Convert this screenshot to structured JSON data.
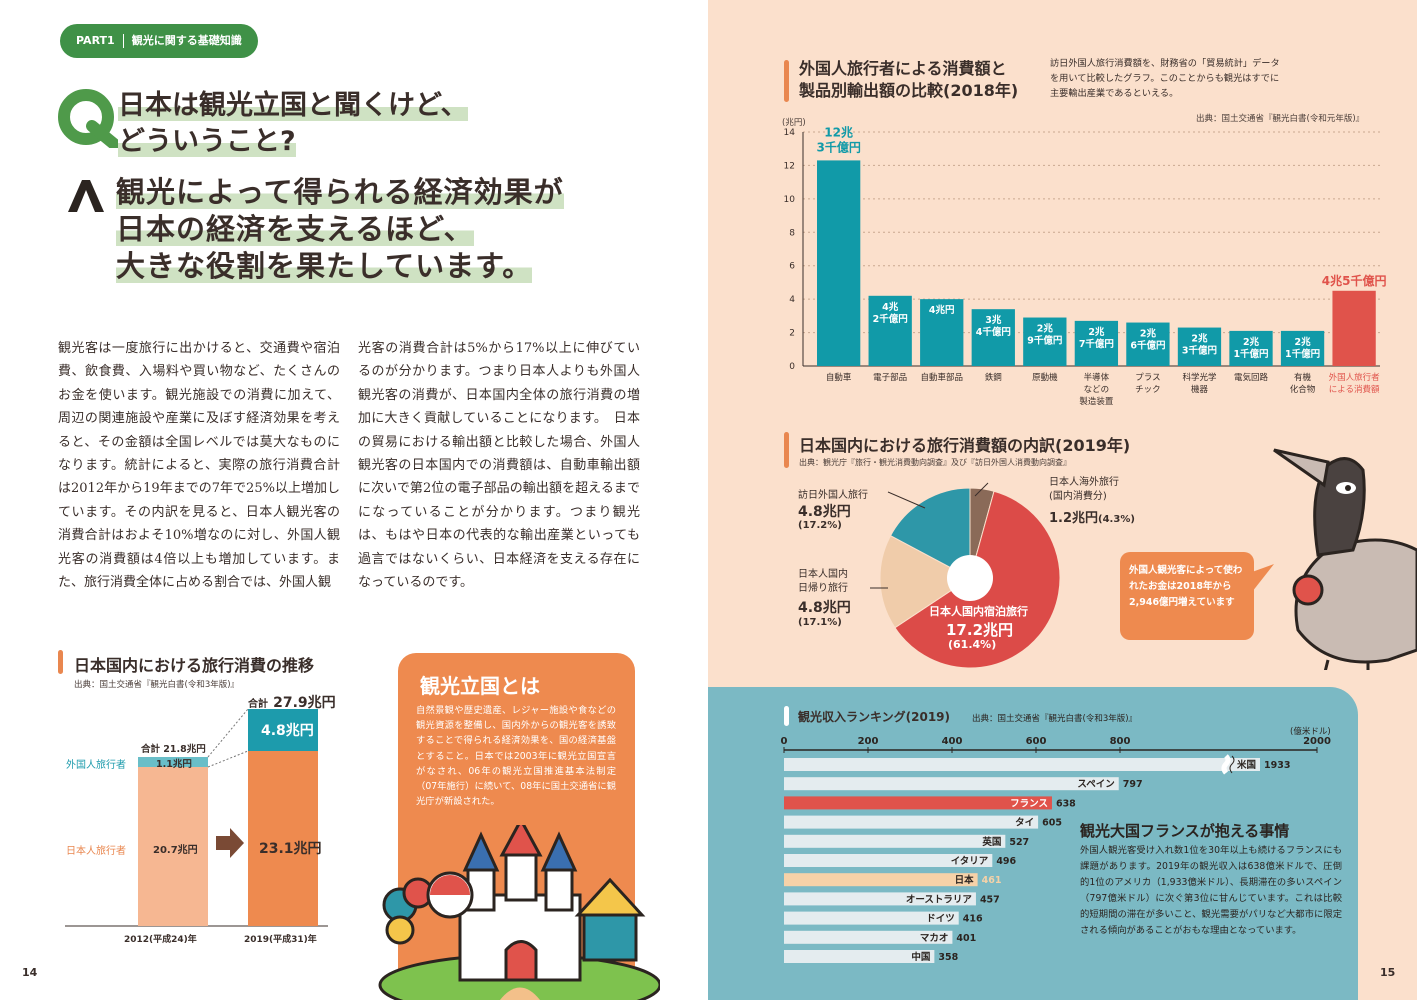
{
  "part": {
    "label": "PART1",
    "title": "観光に関する基礎知識"
  },
  "q": {
    "mark": "Q",
    "line1": "日本は観光立国と聞くけど、",
    "line2": "どういうこと?"
  },
  "a": {
    "mark": "A",
    "line1": "観光によって得られる経済効果が",
    "line2": "日本の経済を支えるほど、",
    "line3": "大きな役割を果たしています。"
  },
  "body": {
    "col1": "観光客は一度旅行に出かけると、交通費や宿泊費、飲食費、入場料や買い物など、たくさんのお金を使います。観光施設での消費に加えて、周辺の関連施設や産業に及ぼす経済効果を考えると、その金額は全国レベルでは莫大なものになります。統計によると、実際の旅行消費合計は2012年から19年までの7年で25%以上増加しています。その内訳を見ると、日本人観光客の消費合計はおよそ10%増なのに対し、外国人観光客の消費額は4倍以上も増加しています。また、旅行消費全体に占める割合では、外国人観",
    "col2": "光客の消費合計は5%から17%以上に伸びているのが分かります。つまり日本人よりも外国人観光客の消費が、日本国内全体の旅行消費の増加に大きく貢献していることになります。　日本の貿易における輸出額と比較した場合、外国人観光客の日本国内での消費額は、自動車輸出額に次いで第2位の電子部品の輸出額を超えるまでになっていることが分かります。つまり観光は、もはや日本の代表的な輸出産業といっても過言ではないくらい、日本経済を支える存在になっているのです。",
    "ruby1": "ばくだい",
    "ruby2": "こうけん"
  },
  "trend": {
    "title": "日本国内における旅行消費の推移",
    "source": "出典：国土交通省『観光白書(令和3年版)』",
    "label_foreign": "外国人旅行者",
    "label_japanese": "日本人旅行者",
    "total_2012": "合計 21.8兆円",
    "total_2019_prefix": "合計",
    "total_2019_value": "27.9兆円",
    "foreign_2012": "1.1兆円",
    "japanese_2012": "20.7兆円",
    "foreign_2019": "4.8兆円",
    "japanese_2019": "23.1兆円",
    "year_2012": "2012(平成24)年",
    "year_2019": "2019(平成31)年"
  },
  "kanko_box": {
    "title": "観光立国とは",
    "text": "自然景観や歴史遺産、レジャー施設や食などの観光資源を整備し、国内外からの観光客を誘致することで得られる経済効果を、国の経済基盤とすること。日本では2003年に観光立国宣言がなされ、06年の観光立国推進基本法制定（07年施行）に続いて、08年に国土交通省に観光庁が新設された。"
  },
  "page_numbers": {
    "left": "14",
    "right": "15"
  },
  "export": {
    "title1": "外国人旅行者による消費額と",
    "title2": "製品別輸出額の比較(2018年)",
    "note": "訪日外国人旅行消費額を、財務省の「貿易統計」データを用いて比較したグラフ。このことからも観光はすでに主要輸出産業であるといえる。",
    "source": "出典：国土交通省『観光白書(令和元年版)』",
    "unit": "(兆円)"
  },
  "breakdown": {
    "title": "日本国内における旅行消費額の内訳(2019年)",
    "source": "出典：観光庁『旅行・観光消費動向調査』及び『訪日外国人消費動向調査』",
    "inbound_label": "訪日外国人旅行",
    "inbound_value": "4.8兆円",
    "inbound_pct": "(17.2%)",
    "daytrip_label1": "日本人国内",
    "daytrip_label2": "日帰り旅行",
    "daytrip_value": "4.8兆円",
    "daytrip_pct": "(17.1%)",
    "overnight_label": "日本人国内宿泊旅行",
    "overnight_value": "17.2兆円",
    "overnight_pct": "(61.4%)",
    "outbound_label1": "日本人海外旅行",
    "outbound_label2": "(国内消費分)",
    "outbound_value": "1.2兆円",
    "outbound_pct": "(4.3%)"
  },
  "speech": {
    "text": "外国人観光客によって使われたお金は2018年から2,946億円増えています"
  },
  "ranking": {
    "title": "観光収入ランキング(2019)",
    "source": "出典：国土交通省『観光白書(令和3年版)』",
    "unit": "(億米ドル)"
  },
  "france": {
    "title": "観光大国フランスが抱える事情",
    "text": "外国人観光客受け入れ数1位を30年以上も続けるフランスにも課題があります。2019年の観光収入は638億米ドルで、圧倒的1位のアメリカ（1,933億米ドル）、長期滞在の多いスペイン（797億米ドル）に次ぐ第3位に甘んじています。これは比較的短期間の滞在が多いこと、観光需要がパリなど大都市に限定される傾向があることがおもな理由となっています。"
  },
  "colors": {
    "green": "#3f9147",
    "teal": "#119aa8",
    "red": "#e0534b",
    "orange": "#ee8a4f",
    "peach": "#fbe0cc",
    "blue_panel": "#7bb9c4"
  },
  "chart_data": [
    {
      "type": "bar",
      "title": "外国人旅行者による消費額と製品別輸出額の比較(2018年)",
      "ylabel": "(兆円)",
      "ylim": [
        0,
        14
      ],
      "yticks": [
        0,
        2,
        4,
        6,
        8,
        10,
        12,
        14
      ],
      "categories": [
        "自動車",
        "電子部品",
        "自動車部品",
        "鉄鋼",
        "原動機",
        "半導体などの製造装置",
        "プラスチック",
        "科学光学機器",
        "電気回路",
        "有機化合物",
        "外国人旅行者による消費額"
      ],
      "category_lines": [
        [
          "自動車"
        ],
        [
          "電子部品"
        ],
        [
          "自動車部品"
        ],
        [
          "鉄鋼"
        ],
        [
          "原動機"
        ],
        [
          "半導体",
          "などの",
          "製造装置"
        ],
        [
          "プラス",
          "チック"
        ],
        [
          "科学光学",
          "機器"
        ],
        [
          "電気回路"
        ],
        [
          "有機",
          "化合物"
        ],
        [
          "外国人旅行者",
          "による消費額"
        ]
      ],
      "values": [
        12.3,
        4.2,
        4.0,
        3.4,
        2.9,
        2.7,
        2.6,
        2.3,
        2.1,
        2.1,
        4.5
      ],
      "data_labels": [
        [
          "12兆",
          "3千億円"
        ],
        [
          "4兆",
          "2千億円"
        ],
        [
          "4兆円"
        ],
        [
          "3兆",
          "4千億円"
        ],
        [
          "2兆",
          "9千億円"
        ],
        [
          "2兆",
          "7千億円"
        ],
        [
          "2兆",
          "6千億円"
        ],
        [
          "2兆",
          "3千億円"
        ],
        [
          "2兆",
          "1千億円"
        ],
        [
          "2兆",
          "1千億円"
        ],
        [
          "4兆5千億円"
        ]
      ]
    },
    {
      "type": "pie",
      "title": "日本国内における旅行消費額の内訳(2019年)",
      "labels": [
        "日本人海外旅行(国内消費分)",
        "日本人国内宿泊旅行",
        "日本人国内日帰り旅行",
        "訪日外国人旅行"
      ],
      "values": [
        4.3,
        61.4,
        17.1,
        17.2
      ],
      "colors": [
        "#8a6a58",
        "#dc4b48",
        "#f0ccaa",
        "#2e97a8"
      ]
    },
    {
      "type": "bar",
      "title": "観光収入ランキング(2019)",
      "orientation": "horizontal",
      "xlim": [
        0,
        2000
      ],
      "xticks": [
        0,
        200,
        400,
        600,
        800,
        2000
      ],
      "categories": [
        "米国",
        "スペイン",
        "フランス",
        "タイ",
        "英国",
        "イタリア",
        "日本",
        "オーストラリア",
        "ドイツ",
        "マカオ",
        "中国"
      ],
      "values": [
        1933,
        797,
        638,
        605,
        527,
        496,
        461,
        457,
        416,
        401,
        358
      ],
      "highlight": {
        "フランス": "#e0534b",
        "日本": "#f6d2a8"
      }
    },
    {
      "type": "bar",
      "title": "日本国内における旅行消費の推移",
      "categories": [
        "2012(平成24)年",
        "2019(平成31)年"
      ],
      "series": [
        {
          "name": "日本人旅行者",
          "values": [
            20.7,
            23.1
          ]
        },
        {
          "name": "外国人旅行者",
          "values": [
            1.1,
            4.8
          ]
        }
      ],
      "totals": [
        21.8,
        27.9
      ]
    }
  ]
}
